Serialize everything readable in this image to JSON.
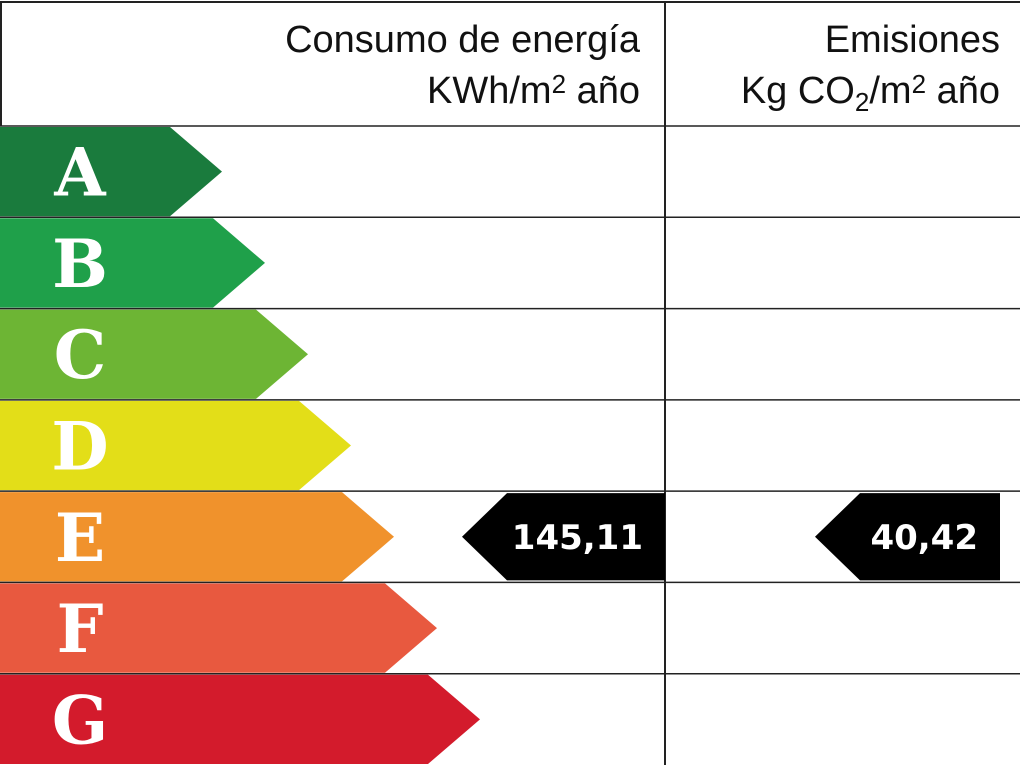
{
  "energy": {
    "title": "Consumo de energía",
    "unit": [
      "KWh/m",
      "2",
      " año"
    ],
    "value": "145,11",
    "rating": "E"
  },
  "emissions": {
    "title": "Emisiones",
    "unit": [
      "Kg CO",
      "2",
      "/m",
      "2",
      " año"
    ],
    "value": "40,42",
    "rating": "E"
  },
  "ratings": [
    {
      "letter": "A",
      "color": "#1a7b3d"
    },
    {
      "letter": "B",
      "color": "#1fa04a"
    },
    {
      "letter": "C",
      "color": "#6db534"
    },
    {
      "letter": "D",
      "color": "#e3de18"
    },
    {
      "letter": "E",
      "color": "#f0922c"
    },
    {
      "letter": "F",
      "color": "#e8593f"
    },
    {
      "letter": "G",
      "color": "#d31b2c"
    }
  ]
}
